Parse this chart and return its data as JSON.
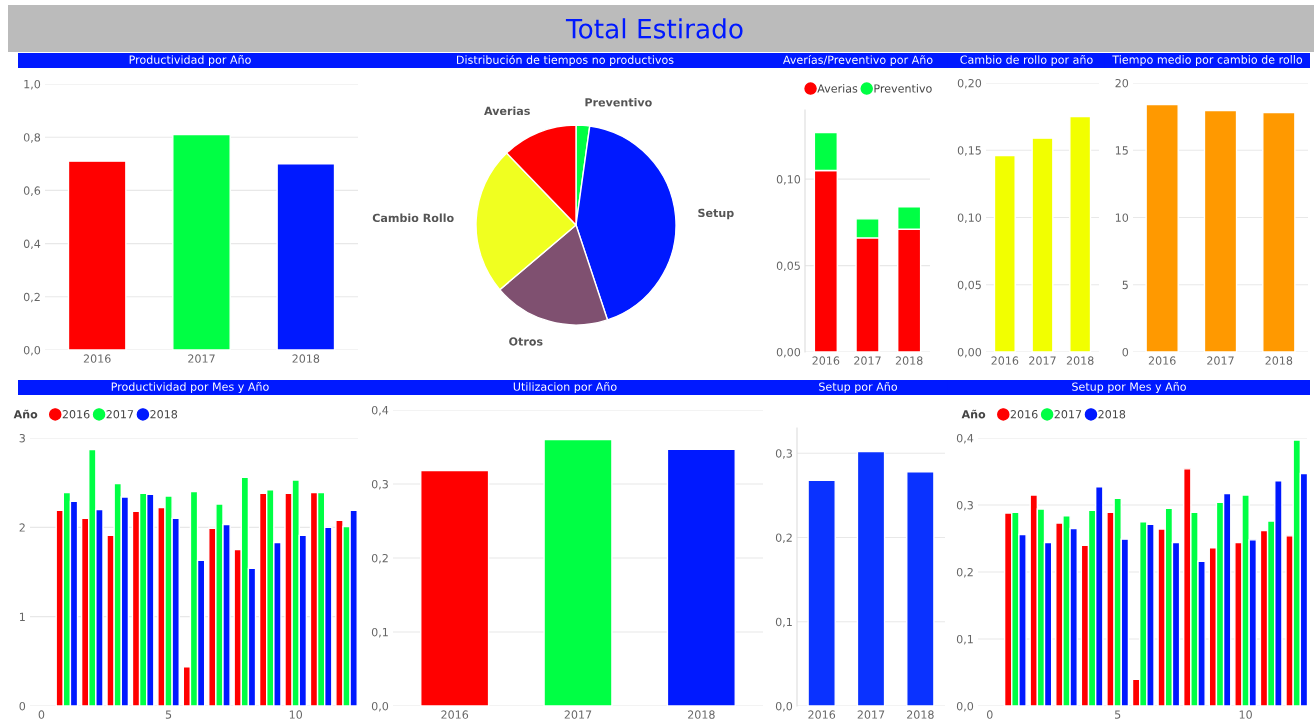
{
  "chart_data": [
    {
      "type": "other",
      "title": "Total Estirado"
    },
    {
      "type": "bar",
      "title": "Productividad por Año",
      "categories": [
        "2016",
        "2017",
        "2018"
      ],
      "values": [
        0.71,
        0.81,
        0.7
      ],
      "colors": [
        "#ff0000",
        "#00ff44",
        "#0019ff"
      ],
      "ylim": [
        0,
        1.0
      ],
      "yticks": [
        {
          "value": 0,
          "label": "0,0"
        },
        {
          "value": 0.2,
          "label": "0,2"
        },
        {
          "value": 0.4,
          "label": "0,4"
        },
        {
          "value": 0.6,
          "label": "0,6"
        },
        {
          "value": 0.8,
          "label": "0,8"
        },
        {
          "value": 1.0,
          "label": "1,0"
        }
      ],
      "grid": "y"
    },
    {
      "type": "pie",
      "title": "Distribución de tiempos no productivos",
      "categories": [
        "Preventivo",
        "Setup",
        "Otros",
        "Cambio Rollo",
        "Averias"
      ],
      "values": [
        2.2,
        42.7,
        18.9,
        24.0,
        12.2
      ],
      "colors": [
        "#00ff44",
        "#0019ff",
        "#7f5070",
        "#f0ff20",
        "#ff0000"
      ]
    },
    {
      "type": "bar",
      "title": "Averías/Preventivo por Año",
      "categories": [
        "2016",
        "2017",
        "2018"
      ],
      "stacked": true,
      "legend": "top left",
      "series": [
        {
          "name": "Averias",
          "color": "#ff0000",
          "values": [
            0.105,
            0.066,
            0.071
          ]
        },
        {
          "name": "Preventivo",
          "color": "#00ff44",
          "values": [
            0.022,
            0.011,
            0.013
          ]
        }
      ],
      "ylim": [
        0,
        0.14
      ],
      "yticks": [
        {
          "value": 0,
          "label": "0,00"
        },
        {
          "value": 0.05,
          "label": "0,05"
        },
        {
          "value": 0.1,
          "label": "0,10"
        }
      ],
      "grid": "y"
    },
    {
      "type": "bar",
      "title": "Cambio de rollo por año",
      "categories": [
        "2016",
        "2017",
        "2018"
      ],
      "values": [
        0.146,
        0.159,
        0.175
      ],
      "color": "#f2ff00",
      "ylim": [
        0,
        0.2
      ],
      "yticks": [
        {
          "value": 0,
          "label": "0,00"
        },
        {
          "value": 0.05,
          "label": "0,05"
        },
        {
          "value": 0.1,
          "label": "0,10"
        },
        {
          "value": 0.15,
          "label": "0,15"
        },
        {
          "value": 0.2,
          "label": "0,20"
        }
      ],
      "grid": "y"
    },
    {
      "type": "bar",
      "title": "Tiempo medio por cambio de rollo",
      "categories": [
        "2016",
        "2017",
        "2018"
      ],
      "values": [
        18.4,
        17.95,
        17.8
      ],
      "color": "#ff9900",
      "ylim": [
        0,
        20
      ],
      "yticks": [
        0,
        5,
        10,
        15,
        20
      ],
      "grid": "y"
    },
    {
      "type": "bar",
      "title": "Productividad por Mes y Año",
      "legend_title": "Año",
      "legend": "top left",
      "x": [
        1,
        2,
        3,
        4,
        5,
        6,
        7,
        8,
        9,
        10,
        11,
        12
      ],
      "series": [
        {
          "name": "2016",
          "color": "#ff0000",
          "values": [
            2.19,
            2.1,
            1.91,
            2.18,
            2.22,
            0.44,
            1.99,
            1.75,
            2.38,
            2.38,
            2.39,
            2.08
          ]
        },
        {
          "name": "2017",
          "color": "#00ff44",
          "values": [
            2.39,
            2.87,
            2.49,
            2.38,
            2.35,
            2.4,
            2.26,
            2.56,
            2.42,
            2.53,
            2.39,
            2.01
          ]
        },
        {
          "name": "2018",
          "color": "#0019ff",
          "values": [
            2.29,
            2.2,
            2.34,
            2.37,
            2.1,
            1.63,
            2.03,
            1.54,
            1.83,
            1.91,
            2.0,
            2.19
          ]
        }
      ],
      "xlim": [
        -0.45,
        12.45
      ],
      "xticks": [
        0,
        5,
        10
      ],
      "ylim": [
        0,
        3
      ],
      "yticks": [
        0,
        1,
        2,
        3
      ],
      "grid": "y"
    },
    {
      "type": "bar",
      "title": "Utilizacion por Año",
      "categories": [
        "2016",
        "2017",
        "2018"
      ],
      "values": [
        0.318,
        0.36,
        0.347
      ],
      "colors": [
        "#ff0000",
        "#00ff44",
        "#0019ff"
      ],
      "ylim": [
        0,
        0.4
      ],
      "yticks": [
        {
          "value": 0,
          "label": "0,0"
        },
        {
          "value": 0.1,
          "label": "0,1"
        },
        {
          "value": 0.2,
          "label": "0,2"
        },
        {
          "value": 0.3,
          "label": "0,3"
        },
        {
          "value": 0.4,
          "label": "0,4"
        }
      ],
      "grid": "y"
    },
    {
      "type": "bar",
      "title": "Setup por Año",
      "categories": [
        "2016",
        "2017",
        "2018"
      ],
      "values": [
        0.268,
        0.302,
        0.278
      ],
      "color": "#0a32ff",
      "ylim": [
        0,
        0.33
      ],
      "yticks": [
        {
          "value": 0,
          "label": "0,0"
        },
        {
          "value": 0.1,
          "label": "0,1"
        },
        {
          "value": 0.2,
          "label": "0,2"
        },
        {
          "value": 0.3,
          "label": "0,3"
        }
      ],
      "grid": "y"
    },
    {
      "type": "bar",
      "title": "Setup por Mes y Año",
      "legend_title": "Año",
      "legend": "top left",
      "x": [
        1,
        2,
        3,
        4,
        5,
        6,
        7,
        8,
        9,
        10,
        11,
        12
      ],
      "series": [
        {
          "name": "2016",
          "color": "#ff0000",
          "values": [
            0.288,
            0.315,
            0.273,
            0.24,
            0.289,
            0.04,
            0.264,
            0.354,
            0.236,
            0.244,
            0.262,
            0.254
          ]
        },
        {
          "name": "2017",
          "color": "#00ff44",
          "values": [
            0.289,
            0.294,
            0.284,
            0.292,
            0.31,
            0.275,
            0.295,
            0.289,
            0.304,
            0.315,
            0.276,
            0.397
          ]
        },
        {
          "name": "2018",
          "color": "#0019ff",
          "values": [
            0.256,
            0.244,
            0.265,
            0.327,
            0.249,
            0.271,
            0.244,
            0.216,
            0.317,
            0.248,
            0.336,
            0.347
          ]
        }
      ],
      "xlim": [
        -0.46,
        12.4
      ],
      "xticks": [
        0,
        5,
        10
      ],
      "ylim": [
        0,
        0.4
      ],
      "yticks": [
        {
          "value": 0,
          "label": "0,0"
        },
        {
          "value": 0.1,
          "label": "0,1"
        },
        {
          "value": 0.2,
          "label": "0,2"
        },
        {
          "value": 0.3,
          "label": "0,3"
        },
        {
          "value": 0.4,
          "label": "0,4"
        }
      ],
      "grid": "y"
    }
  ]
}
